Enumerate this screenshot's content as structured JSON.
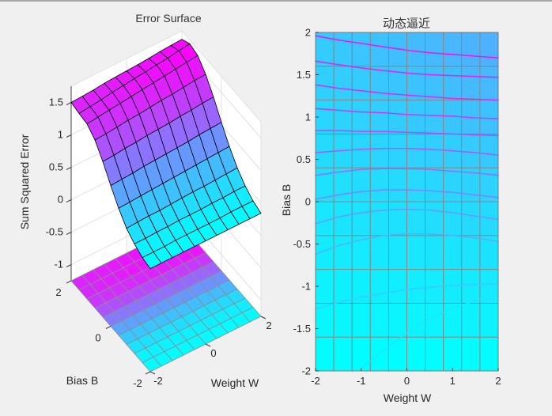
{
  "figure": {
    "background": "#f0f0f0",
    "wall_color": "#ffffff",
    "wall_grid_color": "#e0e0e0",
    "surface_edge_color": "#000000",
    "floor_mesh_color": "#8c8c8c",
    "pcolor_mesh_color": "#848484",
    "axis_text_color": "#262626",
    "colormap": "cool",
    "colormap_low": "#00ffff",
    "colormap_high": "#ff00ff"
  },
  "chart_data": [
    {
      "id": "error-surface",
      "type": "surface",
      "title": "Error Surface",
      "xlabel": "Weight W",
      "ylabel": "Bias B",
      "zlabel": "Sum Squared Error",
      "colormap": "cool",
      "x_weight": [
        -2,
        -1.6,
        -1.2,
        -0.8,
        -0.4,
        0,
        0.4,
        0.8,
        1.2,
        1.6,
        2
      ],
      "y_bias": [
        -2,
        -1.6,
        -1.2,
        -0.8,
        -0.4,
        0,
        0.4,
        0.8,
        1.2,
        1.6,
        2
      ],
      "z_sse_grid": [
        [
          0.34,
          0.34,
          0.34,
          0.34,
          0.34,
          0.34,
          0.34,
          0.34,
          0.34,
          0.34,
          0.34
        ],
        [
          0.37,
          0.37,
          0.37,
          0.38,
          0.38,
          0.38,
          0.38,
          0.38,
          0.39,
          0.39,
          0.39
        ],
        [
          0.44,
          0.44,
          0.45,
          0.45,
          0.46,
          0.46,
          0.46,
          0.47,
          0.47,
          0.48,
          0.48
        ],
        [
          0.54,
          0.55,
          0.56,
          0.56,
          0.57,
          0.58,
          0.59,
          0.59,
          0.6,
          0.61,
          0.62
        ],
        [
          0.71,
          0.72,
          0.73,
          0.74,
          0.75,
          0.76,
          0.77,
          0.78,
          0.79,
          0.8,
          0.81
        ],
        [
          0.92,
          0.93,
          0.94,
          0.96,
          0.97,
          0.98,
          0.99,
          1.0,
          1.02,
          1.03,
          1.04
        ],
        [
          1.15,
          1.16,
          1.18,
          1.19,
          1.21,
          1.22,
          1.23,
          1.25,
          1.26,
          1.28,
          1.29
        ],
        [
          1.34,
          1.35,
          1.37,
          1.39,
          1.4,
          1.42,
          1.44,
          1.45,
          1.47,
          1.49,
          1.5
        ],
        [
          1.45,
          1.47,
          1.49,
          1.51,
          1.53,
          1.55,
          1.57,
          1.59,
          1.61,
          1.63,
          1.65
        ],
        [
          1.47,
          1.49,
          1.51,
          1.54,
          1.56,
          1.58,
          1.6,
          1.62,
          1.64,
          1.67,
          1.69
        ],
        [
          1.5,
          1.51,
          1.52,
          1.54,
          1.55,
          1.56,
          1.57,
          1.58,
          1.6,
          1.61,
          1.62
        ]
      ],
      "zlim": [
        -1.25,
        1.75
      ],
      "caxis": [
        0.34,
        1.69
      ],
      "z_ticks": [
        1.5,
        1,
        0.5,
        0,
        -0.5,
        -1
      ],
      "x_ticks": [
        -2,
        0,
        2
      ],
      "y_ticks": [
        2,
        0,
        -2
      ],
      "floor_pcolor": true
    },
    {
      "id": "dynamic-approximation",
      "type": "pcolor_contour",
      "title": "动态逼近",
      "xlabel": "Weight W",
      "ylabel": "Bias B",
      "colormap": "cool",
      "xlim": [
        -2,
        2
      ],
      "ylim": [
        -2,
        2
      ],
      "x_ticks": [
        -2,
        -1,
        0,
        1,
        2
      ],
      "y_ticks": [
        2,
        1.5,
        1,
        0.5,
        0,
        -0.5,
        -1,
        -1.5,
        -2
      ],
      "mesh_cols": 10,
      "mesh_rows": 10,
      "color_levels": {
        "b": [
          -2,
          -1.6,
          -1.2,
          -0.8,
          -0.4,
          0,
          0.4,
          0.8,
          1.2,
          1.6,
          2
        ],
        "at_w_minus2": [
          0,
          0.021,
          0.042,
          0.063,
          0.084,
          0.105,
          0.126,
          0.147,
          0.168,
          0.189,
          0.21
        ],
        "at_w_plus2": [
          0,
          0.033,
          0.066,
          0.099,
          0.132,
          0.165,
          0.198,
          0.231,
          0.264,
          0.297,
          0.33
        ]
      },
      "contours": [
        {
          "level": 0.93,
          "w": [
            -2,
            -1.5,
            -1,
            -0.5,
            0,
            0.5,
            1,
            1.5,
            2
          ],
          "b": [
            1.96,
            1.91,
            1.87,
            1.83,
            1.79,
            1.76,
            1.74,
            1.72,
            1.7
          ]
        },
        {
          "level": 0.88,
          "w": [
            -2,
            -1.5,
            -1,
            -0.5,
            0,
            0.5,
            1,
            1.5,
            2
          ],
          "b": [
            1.66,
            1.62,
            1.58,
            1.55,
            1.52,
            1.5,
            1.49,
            1.48,
            1.47
          ]
        },
        {
          "level": 0.83,
          "w": [
            -2,
            -1.5,
            -1,
            -0.5,
            0,
            0.5,
            1,
            1.5,
            2
          ],
          "b": [
            1.38,
            1.34,
            1.31,
            1.28,
            1.26,
            1.24,
            1.22,
            1.21,
            1.2
          ]
        },
        {
          "level": 0.78,
          "w": [
            -2,
            -1.5,
            -1,
            -0.5,
            0,
            0.5,
            1,
            1.5,
            2
          ],
          "b": [
            1.1,
            1.08,
            1.06,
            1.05,
            1.03,
            1.02,
            1.01,
            0.99,
            0.98
          ]
        },
        {
          "level": 0.71,
          "w": [
            -2,
            -1.5,
            -1,
            -0.5,
            0,
            0.5,
            1,
            1.5,
            2
          ],
          "b": [
            0.84,
            0.84,
            0.83,
            0.83,
            0.82,
            0.81,
            0.8,
            0.79,
            0.78
          ]
        },
        {
          "level": 0.64,
          "w": [
            -2,
            -1.5,
            -1,
            -0.5,
            0,
            0.5,
            1,
            1.5,
            2
          ],
          "b": [
            0.58,
            0.6,
            0.62,
            0.63,
            0.63,
            0.62,
            0.6,
            0.58,
            0.55
          ]
        },
        {
          "level": 0.56,
          "w": [
            -2,
            -1.5,
            -1,
            -0.5,
            0,
            0.5,
            1,
            1.5,
            2
          ],
          "b": [
            0.31,
            0.35,
            0.38,
            0.39,
            0.39,
            0.38,
            0.36,
            0.34,
            0.31
          ]
        },
        {
          "level": 0.48,
          "w": [
            -2,
            -1.5,
            -1,
            -0.5,
            0,
            0.5,
            1,
            1.5,
            2
          ],
          "b": [
            0.03,
            0.08,
            0.12,
            0.14,
            0.14,
            0.13,
            0.11,
            0.08,
            0.05
          ]
        },
        {
          "level": 0.4,
          "w": [
            -2,
            -1.5,
            -1,
            -0.5,
            0,
            0.5,
            1,
            1.5,
            2
          ],
          "b": [
            -0.26,
            -0.18,
            -0.13,
            -0.1,
            -0.09,
            -0.1,
            -0.13,
            -0.17,
            -0.21
          ]
        },
        {
          "level": 0.31,
          "w": [
            -2,
            -1.5,
            -1,
            -0.5,
            0,
            0.5,
            1,
            1.5,
            2
          ],
          "b": [
            -0.62,
            -0.52,
            -0.45,
            -0.4,
            -0.38,
            -0.38,
            -0.4,
            -0.43,
            -0.47
          ]
        },
        {
          "level": 0.2,
          "w": [
            -2,
            -1.5,
            -1,
            -0.5,
            0,
            0.5,
            1,
            1.5,
            2
          ],
          "b": [
            -1.27,
            -1.19,
            -1.13,
            -1.08,
            -1.04,
            -1.01,
            -0.99,
            -0.98,
            -0.97
          ]
        },
        {
          "level": 0.1,
          "w": [
            -1,
            -0.5,
            0,
            0.5,
            1,
            1.5,
            2
          ],
          "b": [
            -1.97,
            -1.75,
            -1.55,
            -1.38,
            -1.26,
            -1.17,
            -1.12
          ]
        }
      ]
    }
  ]
}
